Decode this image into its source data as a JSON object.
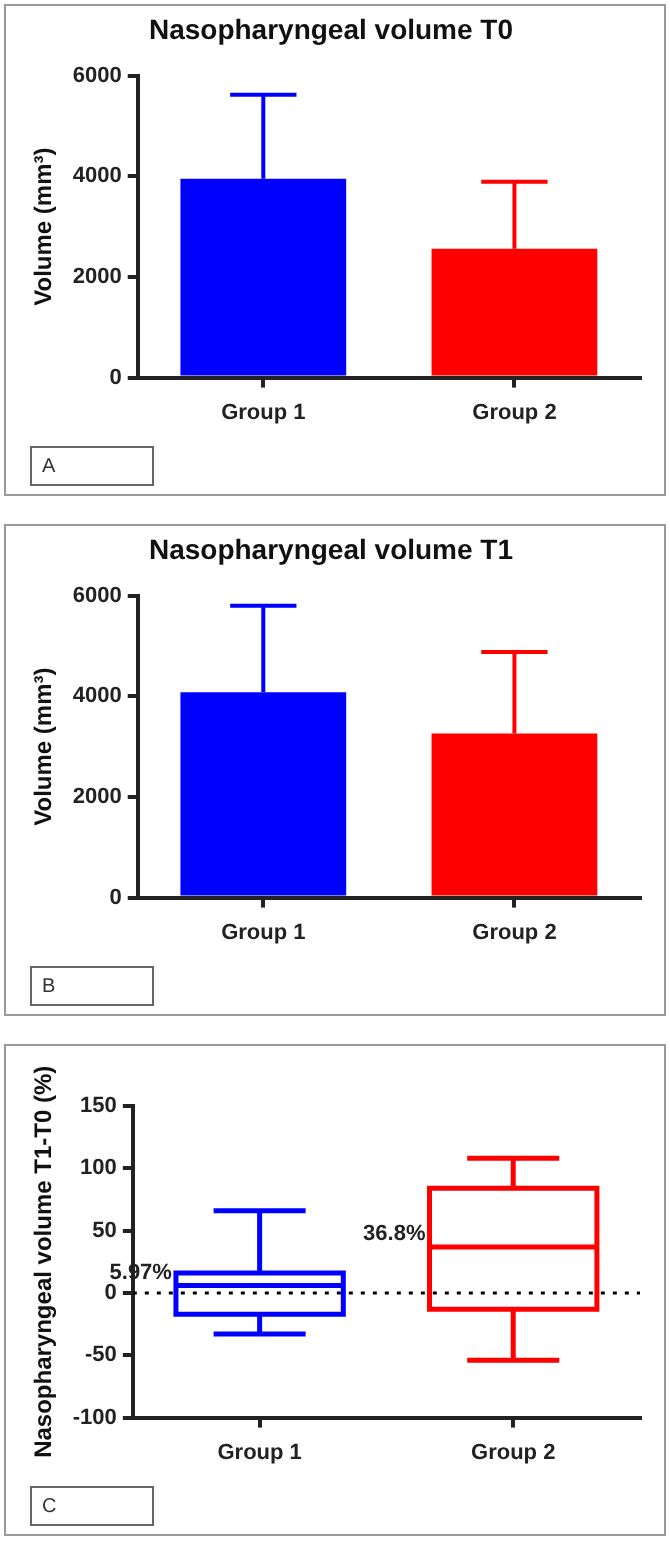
{
  "chart_data": [
    {
      "type": "bar",
      "title": "Nasopharyngeal volume T0",
      "ylabel": "Volume (mm³)",
      "categories": [
        "Group 1",
        "Group 2"
      ],
      "values": [
        3950,
        2560
      ],
      "colors": [
        "#0000ff",
        "#ff0000"
      ],
      "errors": [
        [
          3950,
          5620
        ],
        [
          2560,
          3890
        ]
      ],
      "ylim": [
        0,
        6000
      ],
      "yticks": [
        0,
        2000,
        4000,
        6000
      ],
      "grid": false,
      "legend": false,
      "annotations": [
        "A"
      ]
    },
    {
      "type": "bar",
      "title": "Nasopharyngeal volume T1",
      "ylabel": "Volume (mm³)",
      "categories": [
        "Group 1",
        "Group 2"
      ],
      "values": [
        4080,
        3260
      ],
      "colors": [
        "#0000ff",
        "#ff0000"
      ],
      "errors": [
        [
          4080,
          5800
        ],
        [
          3260,
          4880
        ]
      ],
      "ylim": [
        0,
        6000
      ],
      "yticks": [
        0,
        2000,
        4000,
        6000
      ],
      "grid": false,
      "legend": false,
      "annotations": [
        "B"
      ]
    },
    {
      "type": "box",
      "ylabel": "Nasopharyngeal volume T1-T0 (%)",
      "categories": [
        "Group 1",
        "Group 2"
      ],
      "colors": [
        "#0000ff",
        "#ff0000"
      ],
      "boxes": [
        {
          "low": -33,
          "q1": -17,
          "median": 5.97,
          "q3": 16,
          "high": 66
        },
        {
          "low": -54,
          "q1": -13,
          "median": 36.8,
          "q3": 84,
          "high": 108
        }
      ],
      "ylim": [
        -100,
        150
      ],
      "yticks": [
        -100,
        -50,
        0,
        50,
        100,
        150
      ],
      "grid": false,
      "legend": false,
      "ref_lines": [
        {
          "axis": "y",
          "value": 0,
          "line_style": "dotted"
        }
      ],
      "annotations": [
        "5.97%",
        "36.8%",
        "C"
      ]
    }
  ]
}
